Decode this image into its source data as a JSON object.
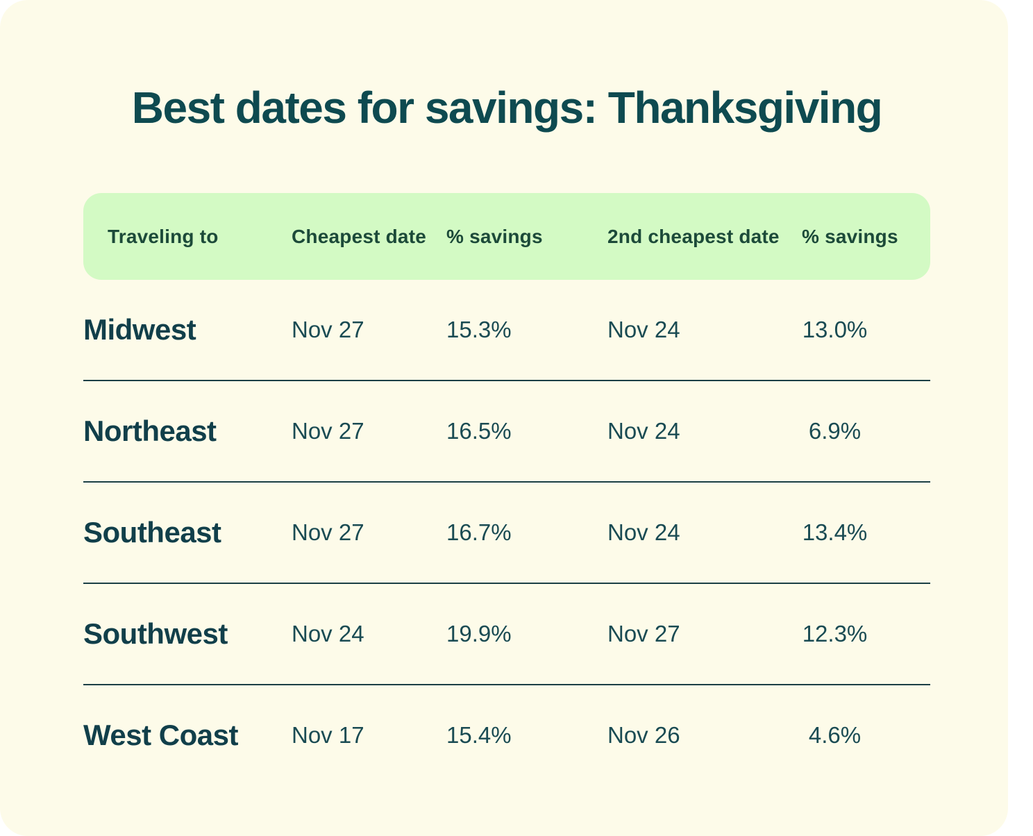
{
  "title": "Best dates for savings: Thanksgiving",
  "chart_data": {
    "type": "table",
    "title": "Best dates for savings: Thanksgiving",
    "columns": [
      "Traveling to",
      "Cheapest date",
      "% savings",
      "2nd cheapest date",
      "% savings"
    ],
    "rows": [
      [
        "Midwest",
        "Nov 27",
        "15.3%",
        "Nov 24",
        "13.0%"
      ],
      [
        "Northeast",
        "Nov 27",
        "16.5%",
        "Nov 24",
        "6.9%"
      ],
      [
        "Southeast",
        "Nov 27",
        "16.7%",
        "Nov 24",
        "13.4%"
      ],
      [
        "Southwest",
        "Nov 24",
        "19.9%",
        "Nov 27",
        "12.3%"
      ],
      [
        "West Coast",
        "Nov 17",
        "15.4%",
        "Nov 26",
        "4.6%"
      ]
    ],
    "savings_percent": {
      "cheapest": [
        15.3,
        16.5,
        16.7,
        19.9,
        15.4
      ],
      "second_cheapest": [
        13.0,
        6.9,
        13.4,
        12.3,
        4.6
      ]
    },
    "layout": {
      "grid": "off",
      "header_style": "green-pill-band",
      "row_dividers": true
    }
  },
  "colors": {
    "page_background": "#FFFFFF",
    "card_background": "#FDFBE9",
    "header_band": "#D3FAC4",
    "title_text": "#0E4A50",
    "header_text": "#1C4A39",
    "region_text": "#113F4A",
    "value_text": "#1A4B53",
    "divider": "#1B3F45"
  }
}
